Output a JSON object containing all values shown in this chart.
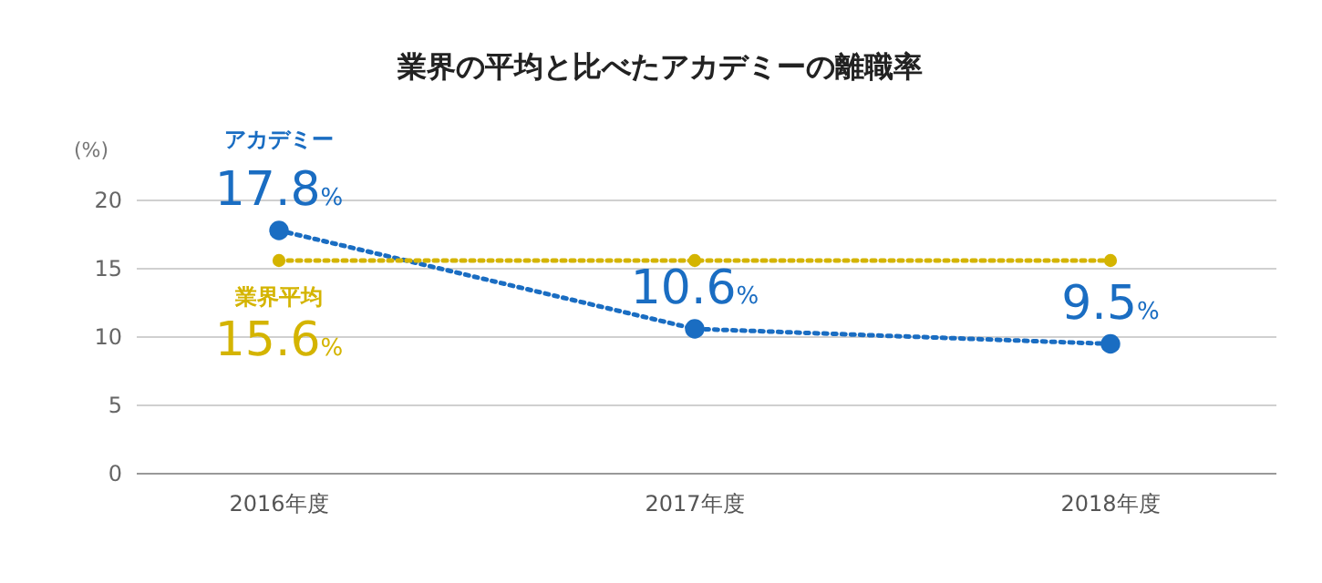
{
  "chart_data": {
    "type": "line",
    "title": "業界の平均と比べたアカデミーの離職率",
    "ylabel": "(%)",
    "categories": [
      "2016年度",
      "2017年度",
      "2018年度"
    ],
    "series": [
      {
        "name": "アカデミー",
        "color": "#1a6dc2",
        "values": [
          17.8,
          10.6,
          9.5
        ],
        "value_labels": [
          "17.8%",
          "10.6%",
          "9.5%"
        ]
      },
      {
        "name": "業界平均",
        "color": "#d4b400",
        "values": [
          15.6,
          15.6,
          15.6
        ],
        "value_labels": [
          "15.6%",
          null,
          null
        ]
      }
    ],
    "ylim": [
      0,
      20
    ],
    "yticks": [
      0,
      5,
      10,
      15,
      20
    ],
    "grid": "y",
    "marker": "circle",
    "line_style": "dotted"
  }
}
